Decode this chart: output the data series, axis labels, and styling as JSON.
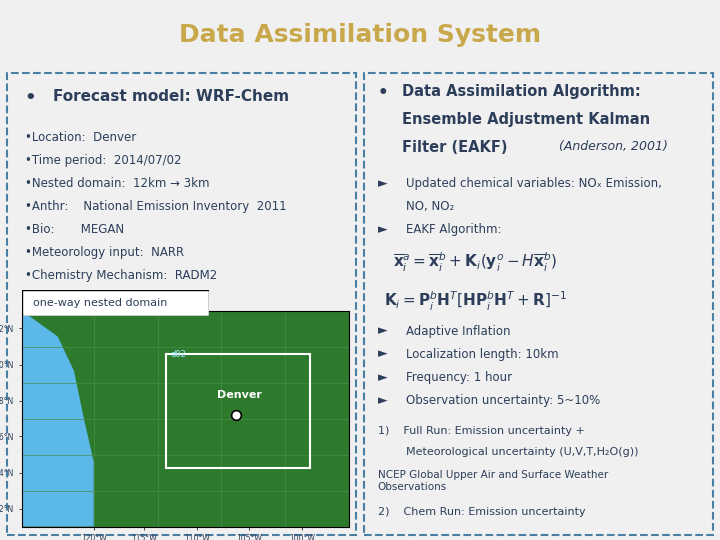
{
  "title": "Data Assimilation System",
  "title_bg": "#1a2f5a",
  "title_color": "#c8a84b",
  "slide_bg": "#f0f0f0",
  "panel_bg": "#ffffff",
  "border_color": "#4a7fa5",
  "text_color": "#2c3e5a",
  "left_bullet": "Forecast model: WRF-Chem",
  "left_items": [
    "•Location:  Denver",
    "•Time period:  2014/07/02",
    "•Nested domain:  12km → 3km",
    "•Anthr:    National Emission Inventory  2011",
    "•Bio:       MEGAN",
    "•Meteorology input:  NARR",
    "•Chemistry Mechanism:  RADM2"
  ],
  "map_label": "one-way nested domain",
  "map_sublabel": "d02",
  "denver_label": "Denver",
  "right_bullet_line1": "Data Assimilation Algorithm:",
  "right_bullet_line2": "Ensemble Adjustment Kalman",
  "right_bullet_line3": "Filter (EAKF)",
  "right_bullet_italic": "(Anderson, 2001)",
  "right_arrow1": "Updated chemical variables: NOₓ Emission,",
  "right_arrow1b": "NO, NO₂",
  "right_arrow2": "EAKF Algorithm:",
  "right_arrows2": [
    "Adaptive Inflation",
    "Localization length: 10km",
    "Frequency: 1 hour",
    "Observation uncertainty: 5~10%"
  ],
  "bottom1a": "1)    Full Run: Emission uncertainty +",
  "bottom1b": "        Meteorological uncertainty (U,V,T,H₂O(g))",
  "bottom2": "NCEP Global Upper Air and Surface Weather\nObservations",
  "bottom3": "2)    Chem Run: Emission uncertainty"
}
